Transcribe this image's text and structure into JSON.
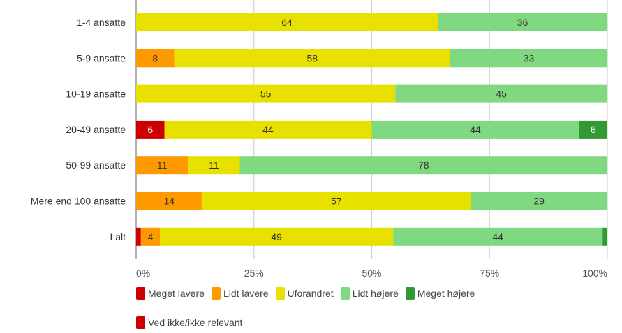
{
  "chart_data": {
    "type": "bar",
    "orientation": "horizontal",
    "stacked": true,
    "normalized_percent": true,
    "title": "",
    "xlabel": "",
    "ylabel": "",
    "xlim": [
      0,
      100
    ],
    "x_ticks": [
      "0%",
      "25%",
      "50%",
      "75%",
      "100%"
    ],
    "grid": true,
    "legend_position": "bottom",
    "categories": [
      "1-4 ansatte",
      "5-9 ansatte",
      "10-19 ansatte",
      "20-49 ansatte",
      "50-99 ansatte",
      "Mere end 100 ansatte",
      "I alt"
    ],
    "series": [
      {
        "name": "Meget lavere",
        "color": "#cc0000",
        "values": [
          0,
          0,
          0,
          6,
          0,
          0,
          1
        ]
      },
      {
        "name": "Lidt lavere",
        "color": "#ff9900",
        "values": [
          0,
          8,
          0,
          0,
          11,
          14,
          4
        ]
      },
      {
        "name": "Uforandret",
        "color": "#e8e100",
        "values": [
          64,
          58,
          55,
          44,
          11,
          57,
          49
        ]
      },
      {
        "name": "Lidt højere",
        "color": "#80d880",
        "values": [
          36,
          33,
          45,
          44,
          78,
          29,
          44
        ]
      },
      {
        "name": "Meget højere",
        "color": "#339933",
        "values": [
          0,
          0,
          0,
          6,
          0,
          0,
          1
        ]
      },
      {
        "name": "Ved ikke/ikke relevant",
        "color": "#cc0000",
        "values": [
          0,
          0,
          0,
          0,
          0,
          0,
          0
        ]
      }
    ]
  }
}
